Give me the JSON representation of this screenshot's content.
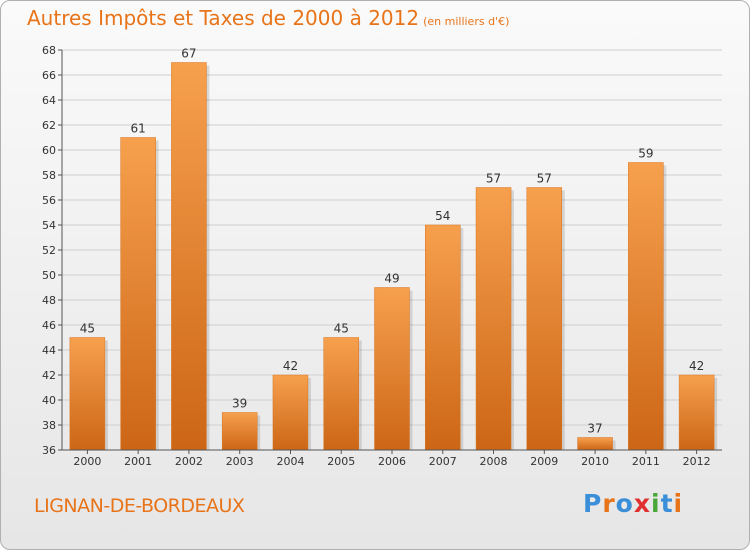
{
  "title": "Autres Impôts et Taxes de 2000 à 2012",
  "subtitle": "(en milliers d'€)",
  "place": "LIGNAN-DE-BORDEAUX",
  "logo": [
    "P",
    "r",
    "o",
    "x",
    "i",
    "t",
    "i"
  ],
  "colors": {
    "bar_top": "#f6a04e",
    "bar_bottom": "#cc6616",
    "accent": "#e8741a",
    "grid": "#cfcfcf"
  },
  "chart_data": {
    "type": "bar",
    "title": "Autres Impôts et Taxes de 2000 à 2012",
    "subtitle": "(en milliers d'€)",
    "categories": [
      "2000",
      "2001",
      "2002",
      "2003",
      "2004",
      "2005",
      "2006",
      "2007",
      "2008",
      "2009",
      "2010",
      "2011",
      "2012"
    ],
    "values": [
      45,
      61,
      67,
      39,
      42,
      45,
      49,
      54,
      57,
      57,
      37,
      59,
      42
    ],
    "ylim": [
      36,
      68
    ],
    "yticks": [
      36,
      38,
      40,
      42,
      44,
      46,
      48,
      50,
      52,
      54,
      56,
      58,
      60,
      62,
      64,
      66,
      68
    ],
    "xlabel": "",
    "ylabel": "",
    "grid": true
  }
}
